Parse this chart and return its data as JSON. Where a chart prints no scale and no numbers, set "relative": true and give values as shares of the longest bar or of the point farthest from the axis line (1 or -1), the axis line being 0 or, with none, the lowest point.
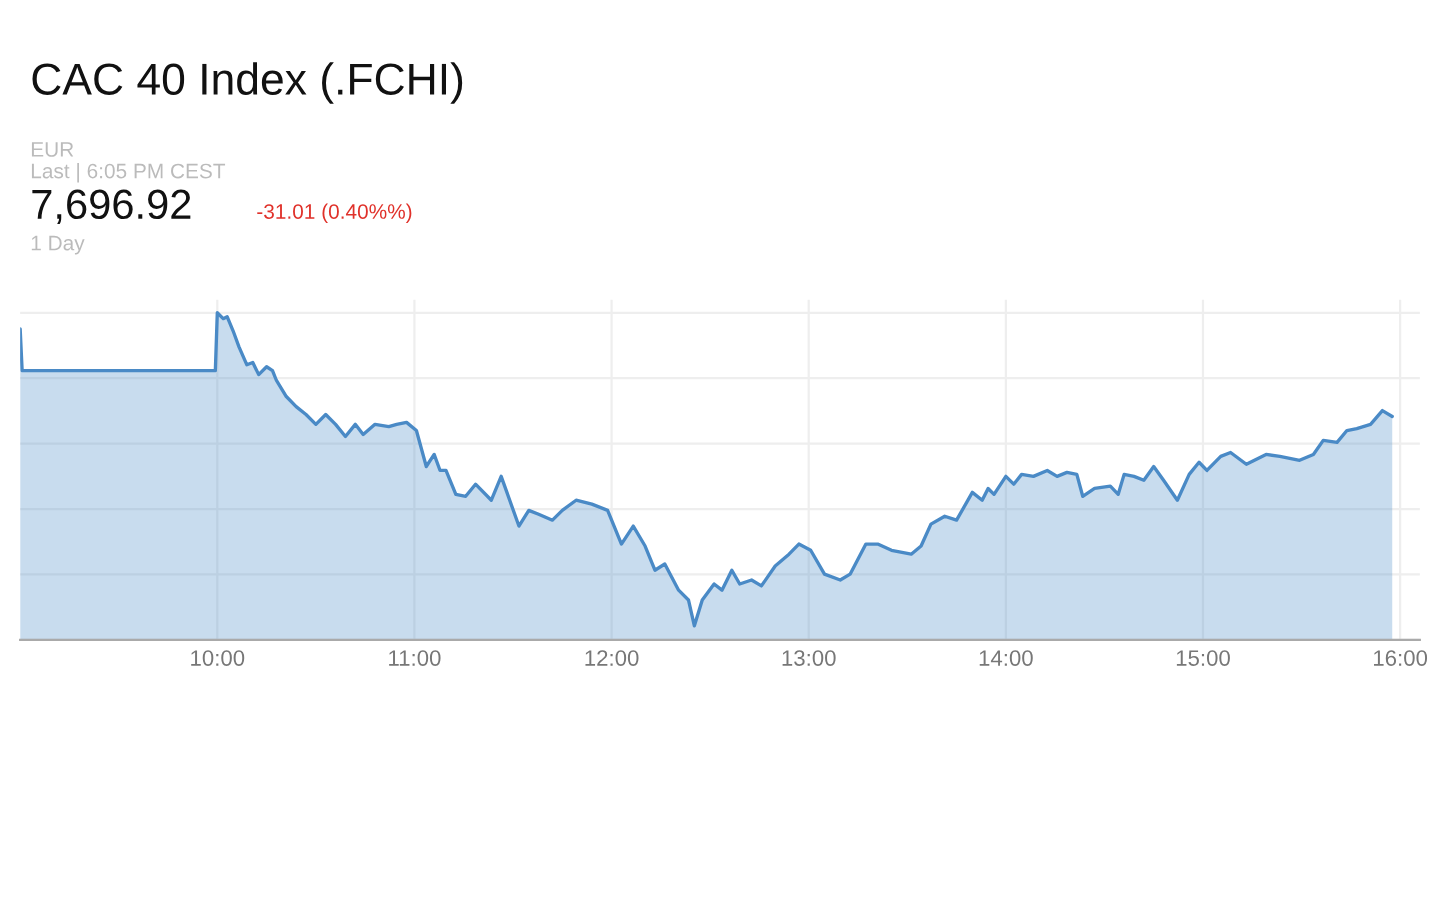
{
  "chart_data": {
    "type": "area",
    "title": "CAC 40 Index (.FCHI)",
    "annotations": [
      "EUR",
      "Last | 6:05 PM CEST",
      "7,696.92",
      "-31.01 (0.40%%)",
      "1 Day"
    ],
    "relative": true,
    "grid": true,
    "tick_labels": "x",
    "xlim": [
      9.0,
      16.1
    ],
    "xticks": [
      {
        "value": 10,
        "label": "10:00"
      },
      {
        "value": 11,
        "label": "11:00"
      },
      {
        "value": 12,
        "label": "12:00"
      },
      {
        "value": 13,
        "label": "13:00"
      },
      {
        "value": 14,
        "label": "14:00"
      },
      {
        "value": 15,
        "label": "15:00"
      },
      {
        "value": 16,
        "label": "16:00"
      }
    ],
    "series": [
      {
        "color": "#4a8ac6",
        "x": [
          9.0,
          9.01,
          9.99,
          10.0,
          10.03,
          10.05,
          10.08,
          10.11,
          10.15,
          10.18,
          10.21,
          10.25,
          10.28,
          10.3,
          10.35,
          10.4,
          10.45,
          10.5,
          10.55,
          10.6,
          10.65,
          10.7,
          10.74,
          10.8,
          10.87,
          10.91,
          10.96,
          11.01,
          11.06,
          11.1,
          11.13,
          11.16,
          11.21,
          11.26,
          11.31,
          11.39,
          11.44,
          11.53,
          11.58,
          11.63,
          11.7,
          11.75,
          11.82,
          11.9,
          11.98,
          12.05,
          12.11,
          12.17,
          12.22,
          12.27,
          12.34,
          12.39,
          12.42,
          12.46,
          12.52,
          12.56,
          12.61,
          12.65,
          12.71,
          12.76,
          12.83,
          12.9,
          12.95,
          13.01,
          13.08,
          13.16,
          13.21,
          13.29,
          13.35,
          13.42,
          13.52,
          13.57,
          13.62,
          13.69,
          13.75,
          13.83,
          13.88,
          13.91,
          13.94,
          14.0,
          14.04,
          14.08,
          14.14,
          14.21,
          14.26,
          14.31,
          14.36,
          14.39,
          14.45,
          14.53,
          14.57,
          14.6,
          14.65,
          14.7,
          14.75,
          14.8,
          14.87,
          14.93,
          14.98,
          15.02,
          15.09,
          15.14,
          15.22,
          15.32,
          15.39,
          15.49,
          15.56,
          15.61,
          15.68,
          15.73,
          15.78,
          15.85,
          15.91,
          15.96
        ],
        "values": [
          0.951,
          0.823,
          0.823,
          1.0,
          0.982,
          0.988,
          0.945,
          0.896,
          0.841,
          0.848,
          0.811,
          0.835,
          0.823,
          0.793,
          0.744,
          0.713,
          0.689,
          0.659,
          0.689,
          0.659,
          0.622,
          0.659,
          0.628,
          0.659,
          0.652,
          0.659,
          0.665,
          0.64,
          0.53,
          0.567,
          0.518,
          0.518,
          0.445,
          0.439,
          0.476,
          0.427,
          0.5,
          0.348,
          0.396,
          0.384,
          0.366,
          0.396,
          0.427,
          0.415,
          0.396,
          0.293,
          0.348,
          0.287,
          0.213,
          0.232,
          0.152,
          0.122,
          0.043,
          0.122,
          0.171,
          0.152,
          0.213,
          0.171,
          0.183,
          0.165,
          0.226,
          0.262,
          0.293,
          0.274,
          0.201,
          0.183,
          0.201,
          0.293,
          0.293,
          0.274,
          0.262,
          0.287,
          0.354,
          0.378,
          0.366,
          0.451,
          0.427,
          0.463,
          0.445,
          0.5,
          0.476,
          0.506,
          0.5,
          0.518,
          0.5,
          0.512,
          0.506,
          0.439,
          0.463,
          0.47,
          0.445,
          0.506,
          0.5,
          0.488,
          0.53,
          0.488,
          0.427,
          0.506,
          0.543,
          0.518,
          0.561,
          0.573,
          0.537,
          0.567,
          0.561,
          0.549,
          0.567,
          0.61,
          0.604,
          0.64,
          0.646,
          0.659,
          0.701,
          0.683
        ]
      }
    ]
  }
}
